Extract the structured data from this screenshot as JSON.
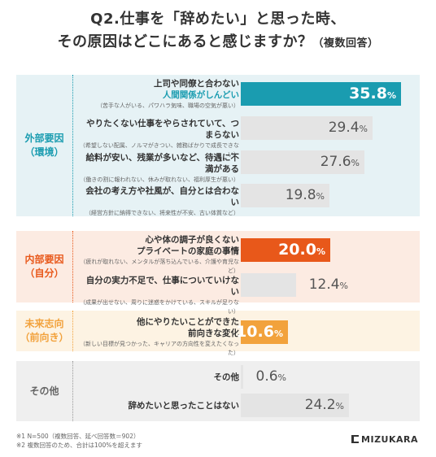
{
  "title": {
    "line1": "Q2.仕事を「辞めたい」と思った時、",
    "line2": "その原因はどこにあると感じますか？",
    "line2_small": "（複数回答）"
  },
  "categories": [
    {
      "label_line1": "外部要因",
      "label_line2": "（環境）"
    },
    {
      "label_line1": "内部要因",
      "label_line2": "（自分）"
    },
    {
      "label_line1": "未来志向",
      "label_line2": "（前向き）"
    },
    {
      "label_line1": "その他",
      "label_line2": ""
    }
  ],
  "rows": [
    {
      "line1": "上司や同僚と合わない",
      "line2": "人間関係がしんどい",
      "sub": "（苦手な人がいる、パワハラ気味、職場の空気が悪い）",
      "value": "35.8"
    },
    {
      "line1": "やりたくない仕事をやらされていて、つまらない",
      "line2": "",
      "sub": "（希望しない配属、ノルマがきつい、雑務ばかりで成長できない）",
      "value": "29.4"
    },
    {
      "line1": "給料が安い、残業が多いなど、待遇に不満がある",
      "line2": "",
      "sub": "（働きの割に報われない、休みが取れない、福利厚生が悪い）",
      "value": "27.6"
    },
    {
      "line1": "会社の考え方や社風が、自分とは合わない",
      "line2": "",
      "sub": "（経営方針に納得できない、将来性が不安、古い体質など）",
      "value": "19.8"
    },
    {
      "line1": "心や体の調子が良くない",
      "line2": "プライベートの家庭の事情",
      "sub": "（疲れが取れない、メンタルが落ち込んでいる、介護や育児など）",
      "value": "20.0"
    },
    {
      "line1": "自分の実力不足で、仕事についていけない",
      "line2": "",
      "sub": "（成果が出せない、周りに迷惑をかけている、スキルが足りない）",
      "value": "12.4"
    },
    {
      "line1": "他にやりたいことができた",
      "line2": "前向きな変化",
      "sub": "（新しい目標が見つかった、キャリアの方向性を変えたくなった）",
      "value": "10.6"
    },
    {
      "line1": "その他",
      "line2": "",
      "sub": "",
      "value": "0.6"
    },
    {
      "line1": "辞めたいと思ったことはない",
      "line2": "",
      "sub": "",
      "value": "24.2"
    }
  ],
  "percent_unit": "%",
  "footnote": {
    "line1": "※1 N=500（複数回答、延べ回答数＝902）",
    "line2": "※2 複数回答のため、合計は100%を超えます"
  },
  "brand": "MIZUKARA",
  "colors": {
    "teal": "#1a9cb0",
    "orange": "#e8581a",
    "amber": "#f2a23c",
    "gray_bar": "#e4e4e4",
    "band_external": "#e6f2f5",
    "band_internal": "#fcebe2",
    "band_future": "#fdf3e3",
    "band_other": "#efefef"
  },
  "chart_data": {
    "type": "bar",
    "orientation": "horizontal",
    "categories": [
      "上司や同僚と合わない 人間関係がしんどい",
      "やりたくない仕事をやらされていて、つまらない",
      "給料が安い、残業が多いなど、待遇に不満がある",
      "会社の考え方や社風が、自分とは合わない",
      "心や体の調子が良くない プライベートの家庭の事情",
      "自分の実力不足で、仕事についていけない",
      "他にやりたいことができた 前向きな変化",
      "その他",
      "辞めたいと思ったことはない"
    ],
    "values": [
      35.8,
      29.4,
      27.6,
      19.8,
      20.0,
      12.4,
      10.6,
      0.6,
      24.2
    ],
    "groups": [
      "外部要因（環境）",
      "外部要因（環境）",
      "外部要因（環境）",
      "外部要因（環境）",
      "内部要因（自分）",
      "内部要因（自分）",
      "未来志向（前向き）",
      "その他",
      "その他"
    ],
    "unit": "%",
    "xlim": [
      0,
      40
    ]
  }
}
